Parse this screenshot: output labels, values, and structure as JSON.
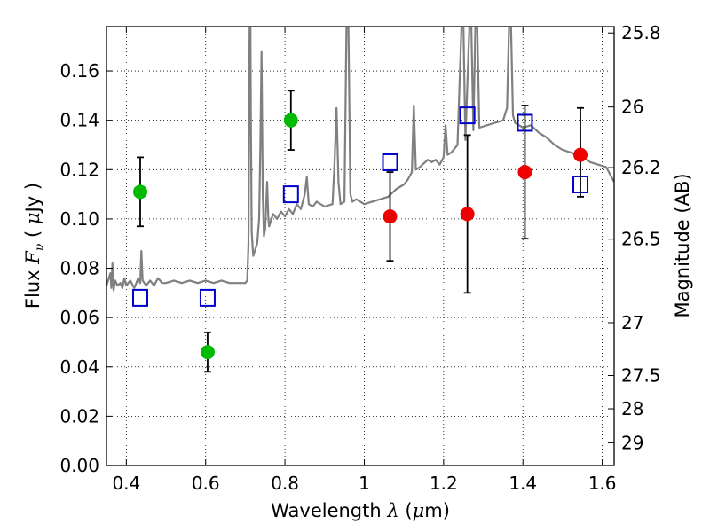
{
  "chart_data": {
    "type": "scatter",
    "title": "",
    "xlabel": "Wavelength",
    "xlabel_symbol": "λ",
    "xlabel_unit_open": "(",
    "xlabel_unit_mu": "μ",
    "xlabel_unit_rest": "m)",
    "ylabel": "Flux",
    "ylabel_symbol_main": "F",
    "ylabel_symbol_sub": "ν",
    "ylabel_unit_open": "(",
    "ylabel_unit_mu": "μ",
    "ylabel_unit_rest": "Jy )",
    "y2label": "Magnitude (AB)",
    "xlim": [
      0.35,
      1.63
    ],
    "ylim": [
      0.0,
      0.178
    ],
    "grid": true,
    "grid_style": "dotted",
    "x_ticks": [
      0.4,
      0.6,
      0.8,
      1.0,
      1.2,
      1.4,
      1.6
    ],
    "x_tick_labels": [
      "0.4",
      "0.6",
      "0.8",
      "1",
      "1.2",
      "1.4",
      "1.6"
    ],
    "y_ticks": [
      0.0,
      0.02,
      0.04,
      0.06,
      0.08,
      0.1,
      0.12,
      0.14,
      0.16
    ],
    "y_tick_labels": [
      "0.00",
      "0.02",
      "0.04",
      "0.06",
      "0.08",
      "0.10",
      "0.12",
      "0.14",
      "0.16"
    ],
    "y2_ticks": [
      {
        "label": "25.8",
        "flux": 0.1754
      },
      {
        "label": "26",
        "flux": 0.1454
      },
      {
        "label": "26.2",
        "flux": 0.1208
      },
      {
        "label": "26.5",
        "flux": 0.0918
      },
      {
        "label": "27",
        "flux": 0.0579
      },
      {
        "label": "27.5",
        "flux": 0.0365
      },
      {
        "label": "28",
        "flux": 0.023
      },
      {
        "label": "29",
        "flux": 0.0092
      }
    ],
    "colors": {
      "spectrum": "#808080",
      "green_points": "#00bb00",
      "red_points": "#ee0000",
      "model_squares": "#0000cc",
      "errorbars": "#000000"
    },
    "series": [
      {
        "style": "line",
        "color_key": "spectrum",
        "points": [
          [
            0.35,
            0.073
          ],
          [
            0.36,
            0.078
          ],
          [
            0.362,
            0.072
          ],
          [
            0.365,
            0.082
          ],
          [
            0.368,
            0.071
          ],
          [
            0.372,
            0.075
          ],
          [
            0.378,
            0.073
          ],
          [
            0.385,
            0.074
          ],
          [
            0.39,
            0.072
          ],
          [
            0.395,
            0.076
          ],
          [
            0.4,
            0.073
          ],
          [
            0.41,
            0.075
          ],
          [
            0.42,
            0.072
          ],
          [
            0.43,
            0.076
          ],
          [
            0.435,
            0.074
          ],
          [
            0.438,
            0.087
          ],
          [
            0.441,
            0.075
          ],
          [
            0.45,
            0.073
          ],
          [
            0.46,
            0.075
          ],
          [
            0.47,
            0.073
          ],
          [
            0.48,
            0.076
          ],
          [
            0.49,
            0.074
          ],
          [
            0.5,
            0.074
          ],
          [
            0.52,
            0.075
          ],
          [
            0.54,
            0.074
          ],
          [
            0.56,
            0.075
          ],
          [
            0.58,
            0.074
          ],
          [
            0.6,
            0.075
          ],
          [
            0.62,
            0.074
          ],
          [
            0.64,
            0.075
          ],
          [
            0.66,
            0.074
          ],
          [
            0.68,
            0.074
          ],
          [
            0.7,
            0.074
          ],
          [
            0.705,
            0.075
          ],
          [
            0.708,
            0.09
          ],
          [
            0.71,
            0.16
          ],
          [
            0.711,
            0.178
          ],
          [
            0.713,
            0.178
          ],
          [
            0.714,
            0.14
          ],
          [
            0.716,
            0.095
          ],
          [
            0.72,
            0.085
          ],
          [
            0.73,
            0.09
          ],
          [
            0.735,
            0.1
          ],
          [
            0.738,
            0.13
          ],
          [
            0.741,
            0.168
          ],
          [
            0.744,
            0.11
          ],
          [
            0.747,
            0.093
          ],
          [
            0.75,
            0.096
          ],
          [
            0.755,
            0.115
          ],
          [
            0.758,
            0.101
          ],
          [
            0.76,
            0.097
          ],
          [
            0.77,
            0.102
          ],
          [
            0.78,
            0.1
          ],
          [
            0.79,
            0.103
          ],
          [
            0.8,
            0.101
          ],
          [
            0.81,
            0.104
          ],
          [
            0.82,
            0.102
          ],
          [
            0.83,
            0.106
          ],
          [
            0.84,
            0.104
          ],
          [
            0.85,
            0.11
          ],
          [
            0.855,
            0.117
          ],
          [
            0.86,
            0.106
          ],
          [
            0.87,
            0.105
          ],
          [
            0.88,
            0.107
          ],
          [
            0.9,
            0.105
          ],
          [
            0.92,
            0.106
          ],
          [
            0.925,
            0.123
          ],
          [
            0.93,
            0.145
          ],
          [
            0.935,
            0.115
          ],
          [
            0.94,
            0.106
          ],
          [
            0.95,
            0.107
          ],
          [
            0.955,
            0.178
          ],
          [
            0.96,
            0.178
          ],
          [
            0.965,
            0.11
          ],
          [
            0.97,
            0.107
          ],
          [
            0.98,
            0.108
          ],
          [
            1.0,
            0.106
          ],
          [
            1.02,
            0.107
          ],
          [
            1.04,
            0.108
          ],
          [
            1.06,
            0.109
          ],
          [
            1.08,
            0.112
          ],
          [
            1.1,
            0.114
          ],
          [
            1.11,
            0.116
          ],
          [
            1.12,
            0.119
          ],
          [
            1.125,
            0.146
          ],
          [
            1.13,
            0.12
          ],
          [
            1.14,
            0.121
          ],
          [
            1.16,
            0.124
          ],
          [
            1.17,
            0.123
          ],
          [
            1.18,
            0.124
          ],
          [
            1.19,
            0.122
          ],
          [
            1.2,
            0.125
          ],
          [
            1.205,
            0.138
          ],
          [
            1.21,
            0.126
          ],
          [
            1.22,
            0.127
          ],
          [
            1.235,
            0.13
          ],
          [
            1.245,
            0.178
          ],
          [
            1.25,
            0.178
          ],
          [
            1.255,
            0.132
          ],
          [
            1.265,
            0.178
          ],
          [
            1.27,
            0.178
          ],
          [
            1.275,
            0.136
          ],
          [
            1.28,
            0.178
          ],
          [
            1.285,
            0.178
          ],
          [
            1.29,
            0.137
          ],
          [
            1.31,
            0.138
          ],
          [
            1.33,
            0.139
          ],
          [
            1.35,
            0.14
          ],
          [
            1.36,
            0.145
          ],
          [
            1.365,
            0.178
          ],
          [
            1.37,
            0.178
          ],
          [
            1.375,
            0.142
          ],
          [
            1.38,
            0.139
          ],
          [
            1.39,
            0.138
          ],
          [
            1.4,
            0.137
          ],
          [
            1.42,
            0.138
          ],
          [
            1.44,
            0.135
          ],
          [
            1.46,
            0.133
          ],
          [
            1.48,
            0.13
          ],
          [
            1.5,
            0.128
          ],
          [
            1.52,
            0.127
          ],
          [
            1.55,
            0.125
          ],
          [
            1.57,
            0.123
          ],
          [
            1.59,
            0.122
          ],
          [
            1.61,
            0.121
          ],
          [
            1.62,
            0.118
          ],
          [
            1.63,
            0.115
          ]
        ]
      },
      {
        "style": "errorbar",
        "marker": "circle",
        "color_key": "green_points",
        "points": [
          {
            "x": 0.435,
            "y": 0.111,
            "ylo": 0.097,
            "yhi": 0.125
          },
          {
            "x": 0.605,
            "y": 0.046,
            "ylo": 0.038,
            "yhi": 0.054
          },
          {
            "x": 0.815,
            "y": 0.14,
            "ylo": 0.128,
            "yhi": 0.152
          }
        ]
      },
      {
        "style": "errorbar",
        "marker": "circle",
        "color_key": "red_points",
        "points": [
          {
            "x": 1.065,
            "y": 0.101,
            "ylo": 0.083,
            "yhi": 0.119
          },
          {
            "x": 1.26,
            "y": 0.102,
            "ylo": 0.07,
            "yhi": 0.134
          },
          {
            "x": 1.405,
            "y": 0.119,
            "ylo": 0.092,
            "yhi": 0.146
          },
          {
            "x": 1.545,
            "y": 0.126,
            "ylo": 0.109,
            "yhi": 0.145
          }
        ]
      },
      {
        "style": "markers",
        "marker": "open-square",
        "color_key": "model_squares",
        "points": [
          [
            0.435,
            0.068
          ],
          [
            0.605,
            0.068
          ],
          [
            0.815,
            0.11
          ],
          [
            1.065,
            0.123
          ],
          [
            1.26,
            0.142
          ],
          [
            1.405,
            0.139
          ],
          [
            1.545,
            0.114
          ]
        ]
      }
    ]
  }
}
